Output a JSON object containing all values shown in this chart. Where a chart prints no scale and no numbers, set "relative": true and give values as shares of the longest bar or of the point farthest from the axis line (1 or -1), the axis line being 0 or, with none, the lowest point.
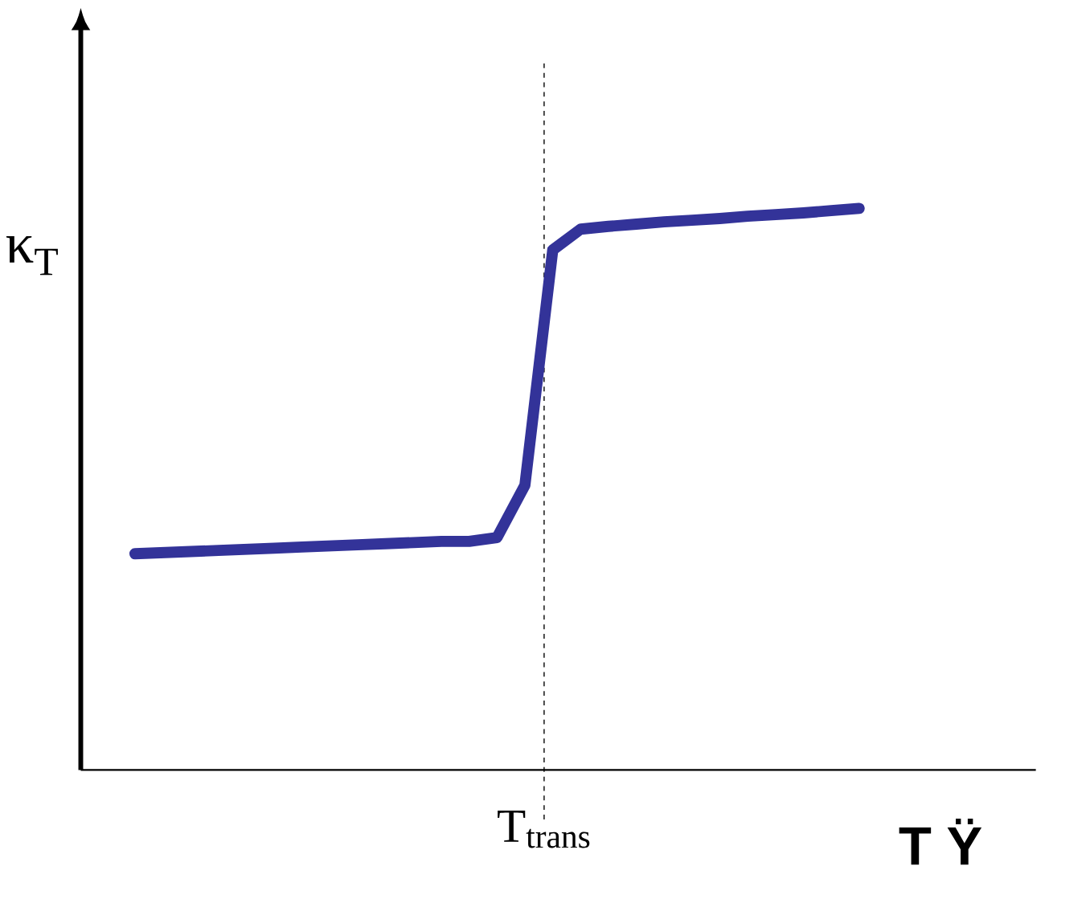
{
  "chart_data": {
    "type": "line",
    "relative": true,
    "xlabel": "T Ÿ",
    "ylabel": "κ$_{T}$",
    "categories": [
      null,
      null,
      null,
      null,
      null,
      null,
      null,
      null,
      null,
      null,
      null,
      null,
      null,
      null,
      null,
      null,
      null,
      null,
      null,
      null,
      null,
      null,
      null,
      null,
      null,
      null,
      null
    ],
    "values": [
      0.385,
      0.387,
      0.389,
      0.391,
      0.393,
      0.395,
      0.397,
      0.399,
      0.401,
      0.403,
      0.405,
      0.407,
      0.407,
      0.414,
      0.507,
      0.926,
      0.963,
      0.968,
      0.972,
      0.976,
      0.979,
      0.982,
      0.986,
      0.989,
      0.992,
      0.996,
      1.0
    ],
    "color": "#333399",
    "annotations": [
      "T$_{trans}$"
    ]
  }
}
